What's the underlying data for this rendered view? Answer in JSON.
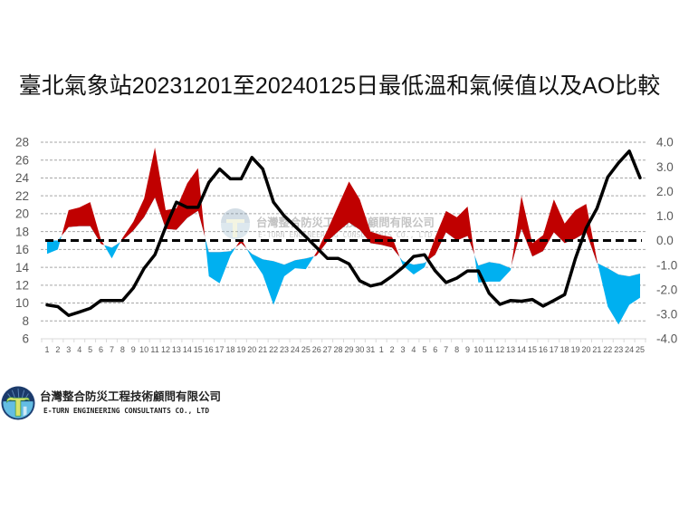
{
  "title": "臺北氣象站20231201至20240125日最低溫和氣候值以及AO比較",
  "watermark": {
    "company_zh": "台灣整合防災工程技術顧問有限公司",
    "company_en": "E-TURN ENGINEERING CONSULTANTS CO., LTD"
  },
  "footer": {
    "logo_icon": "e-turn-company-logo",
    "company_zh": "台灣整合防災工程技術顧問有限公司",
    "company_en": "E-TURN ENGINEERING CONSULTANTS CO., LTD"
  },
  "chart_data": {
    "type": "line",
    "title": "臺北氣象站20231201至20240125日最低溫和氣候值以及AO比較",
    "xlabel": "",
    "ylabel": "",
    "categories": [
      "1",
      "2",
      "3",
      "4",
      "5",
      "6",
      "7",
      "8",
      "9",
      "10",
      "11",
      "12",
      "13",
      "14",
      "15",
      "16",
      "17",
      "18",
      "19",
      "20",
      "21",
      "22",
      "23",
      "24",
      "25",
      "26",
      "27",
      "28",
      "29",
      "30",
      "31",
      "1",
      "2",
      "3",
      "4",
      "5",
      "6",
      "7",
      "8",
      "9",
      "10",
      "11",
      "12",
      "13",
      "14",
      "15",
      "16",
      "17",
      "18",
      "19",
      "20",
      "21",
      "22",
      "23",
      "24",
      "25"
    ],
    "dates_note": "2023-12-01 to 2024-01-25",
    "series": [
      {
        "name": "最低溫",
        "axis": "left",
        "values": [
          15.5,
          16.0,
          20.4,
          20.7,
          21.3,
          17.1,
          15.0,
          17.3,
          19.1,
          21.7,
          27.4,
          20.4,
          20.6,
          23.4,
          25.1,
          13.0,
          12.2,
          15.3,
          17.2,
          15.0,
          13.2,
          9.8,
          13.0,
          13.9,
          13.8,
          15.7,
          18.2,
          20.9,
          23.6,
          21.6,
          18.0,
          17.6,
          17.4,
          14.2,
          13.2,
          14.0,
          17.4,
          20.3,
          19.6,
          20.8,
          12.3,
          12.4,
          12.4,
          13.7,
          22.0,
          16.7,
          17.6,
          21.6,
          18.9,
          20.4,
          21.1,
          14.8,
          9.6,
          7.6,
          9.8,
          10.6
        ]
      },
      {
        "name": "氣候值",
        "axis": "left",
        "values": [
          17.0,
          17.0,
          18.5,
          18.6,
          18.6,
          16.6,
          16.2,
          17.0,
          18.1,
          19.6,
          21.8,
          18.3,
          18.2,
          19.5,
          20.3,
          15.7,
          15.7,
          15.8,
          16.7,
          15.5,
          14.9,
          14.7,
          14.3,
          14.8,
          15.0,
          15.3,
          16.9,
          18.0,
          19.0,
          18.2,
          16.7,
          16.5,
          16.2,
          14.7,
          14.3,
          14.5,
          15.4,
          17.9,
          17.0,
          17.5,
          14.2,
          14.6,
          14.4,
          13.9,
          18.3,
          15.2,
          15.8,
          17.9,
          16.7,
          17.2,
          17.9,
          14.5,
          13.9,
          13.2,
          13.0,
          13.3
        ]
      },
      {
        "name": "AO",
        "axis": "right",
        "color": "#000000",
        "values": [
          -2.62,
          -2.69,
          -3.05,
          -2.91,
          -2.76,
          -2.44,
          -2.44,
          -2.44,
          -1.93,
          -1.13,
          -0.58,
          0.55,
          1.56,
          1.35,
          1.35,
          2.36,
          2.91,
          2.51,
          2.51,
          3.38,
          2.91,
          1.56,
          1.0,
          0.58,
          0.15,
          -0.29,
          -0.73,
          -0.73,
          -0.95,
          -1.64,
          -1.85,
          -1.75,
          -1.45,
          -1.09,
          -0.65,
          -0.58,
          -1.24,
          -1.71,
          -1.53,
          -1.24,
          -1.24,
          -2.15,
          -2.6,
          -2.44,
          -2.47,
          -2.4,
          -2.67,
          -2.44,
          -2.2,
          -0.73,
          0.51,
          1.31,
          2.58,
          3.16,
          3.64,
          2.55
        ]
      }
    ],
    "fill": {
      "between": [
        "最低溫",
        "氣候值"
      ],
      "above_color": "#c00000",
      "below_color": "#00b0f0"
    },
    "reference_line": {
      "axis": "right",
      "value": 0.0,
      "style": "dashed",
      "color": "#000000"
    },
    "left_axis": {
      "min": 6,
      "max": 28,
      "step": 2,
      "ticks": [
        "28",
        "26",
        "24",
        "22",
        "20",
        "18",
        "16",
        "14",
        "12",
        "10",
        "8",
        "6"
      ]
    },
    "right_axis": {
      "min": -4,
      "max": 4,
      "step": 1,
      "ticks": [
        "4.0",
        "3.0",
        "2.0",
        "1.0",
        "0.0",
        "-1.0",
        "-2.0",
        "-3.0",
        "-4.0"
      ]
    },
    "ylim": [
      6,
      28
    ],
    "y2lim": [
      -4,
      4
    ],
    "grid": true,
    "legend": "none"
  }
}
